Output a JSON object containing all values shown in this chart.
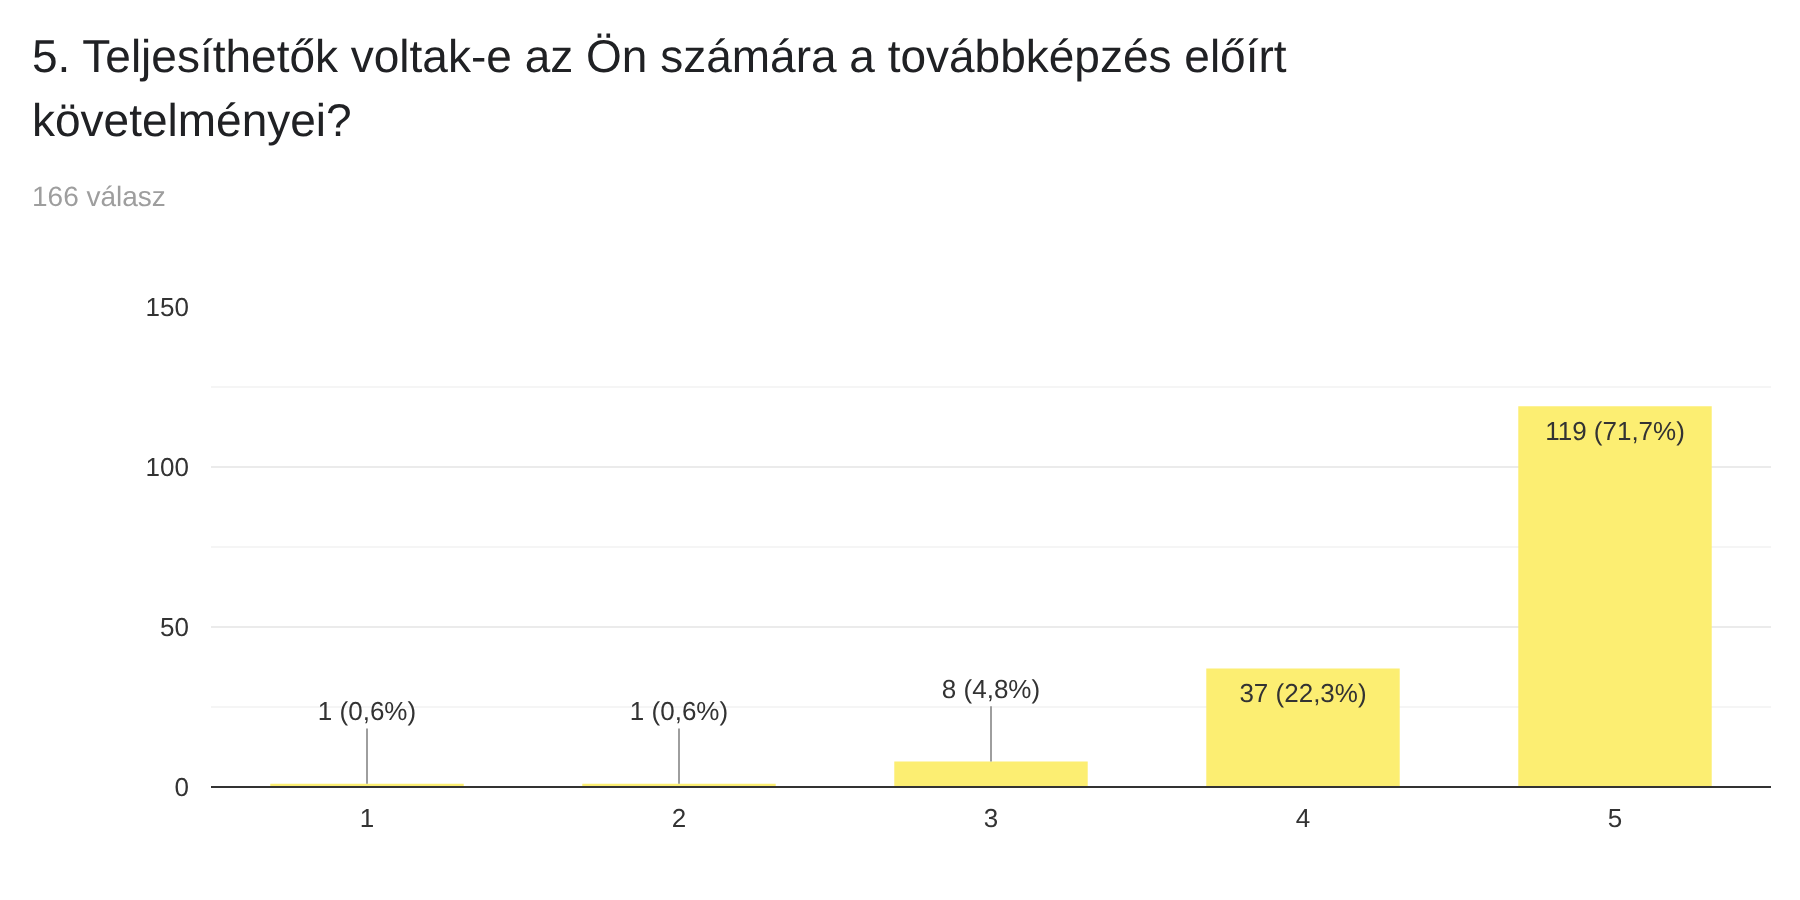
{
  "chart_data": {
    "type": "bar",
    "title": "5. Teljesíthetők voltak-e az Ön számára a továbbképzés előírt követelményei?",
    "subtitle": "166 válasz",
    "categories": [
      "1",
      "2",
      "3",
      "4",
      "5"
    ],
    "values": [
      1,
      1,
      8,
      37,
      119
    ],
    "value_labels": [
      "1 (0,6%)",
      "1 (0,6%)",
      "8 (4,8%)",
      "37 (22,3%)",
      "119 (71,7%)"
    ],
    "color": "#fcee72",
    "ylim": [
      0,
      150
    ],
    "yticks": [
      0,
      50,
      100,
      150
    ],
    "grid": "y"
  }
}
